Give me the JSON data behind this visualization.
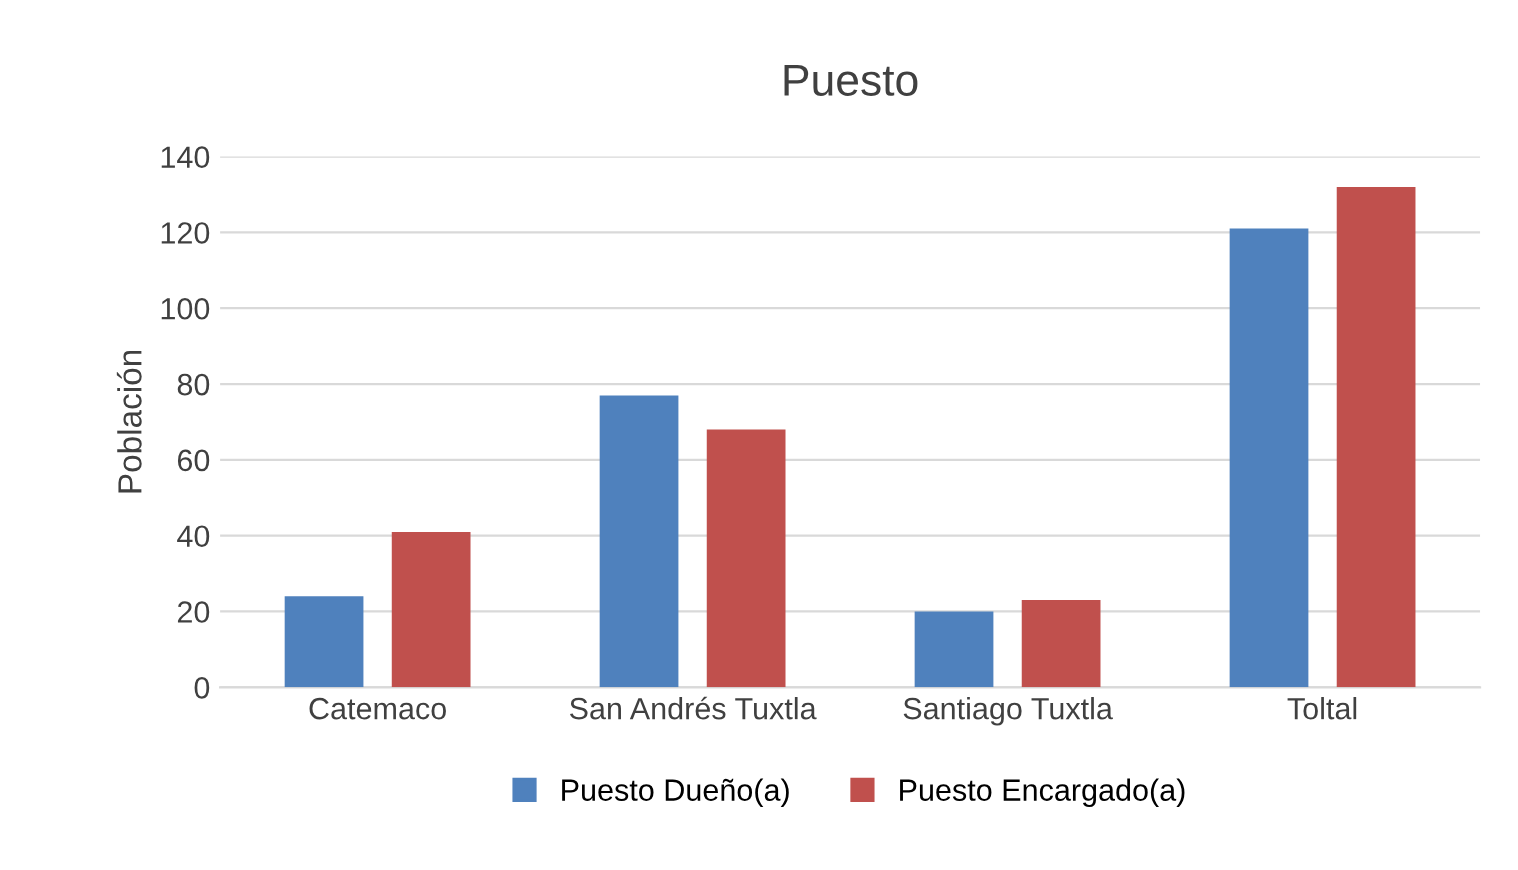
{
  "chart_data": {
    "type": "bar",
    "title": "Puesto",
    "ylabel": "Población",
    "categories": [
      "Catemaco",
      "San Andrés Tuxtla",
      "Santiago Tuxtla",
      "Toltal"
    ],
    "series": [
      {
        "name": "Puesto Dueño(a)",
        "color": "#4f81bd",
        "values": [
          24,
          77,
          20,
          121
        ]
      },
      {
        "name": "Puesto Encargado(a)",
        "color": "#c0504d",
        "values": [
          41,
          68,
          23,
          132
        ]
      }
    ],
    "ylim": [
      0,
      140
    ],
    "yticks": [
      0,
      20,
      40,
      60,
      80,
      100,
      120,
      140
    ],
    "grid": "y",
    "legend": "bottom"
  }
}
